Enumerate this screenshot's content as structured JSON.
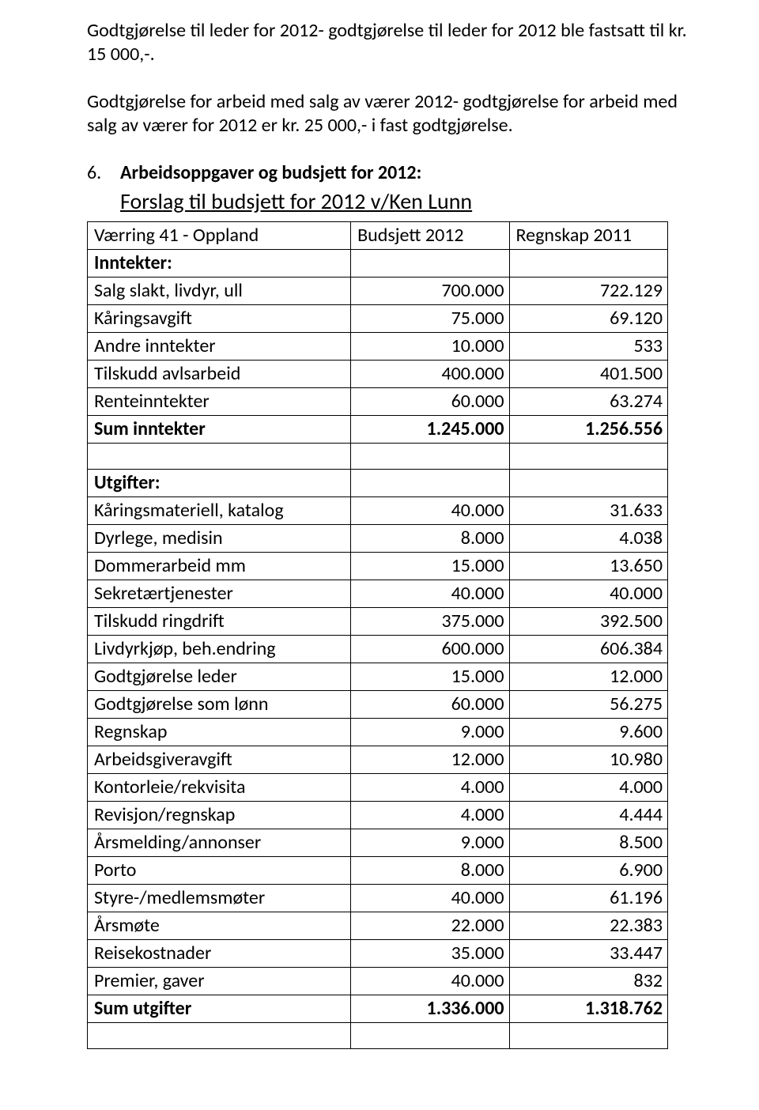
{
  "paragraphs": {
    "p1": "Godtgjørelse til leder for 2012- godtgjørelse til leder for 2012 ble fastsatt til kr. 15 000,-.",
    "p2": "Godtgjørelse for arbeid med salg av værer 2012- godtgjørelse for arbeid med salg av værer for 2012 er kr. 25 000,- i fast godtgjørelse."
  },
  "section": {
    "marker": "6.",
    "title": "Arbeidsoppgaver og budsjett for 2012:",
    "subtitle": "Forslag til budsjett for 2012 v/Ken Lunn"
  },
  "table": {
    "header": {
      "c1": "Værring 41 - Oppland",
      "c2": "Budsjett 2012",
      "c3": "Regnskap 2011"
    },
    "rows": [
      {
        "c1": "Inntekter:",
        "c2": "",
        "c3": "",
        "bold": true,
        "leftOnly": true
      },
      {
        "c1": "Salg slakt, livdyr, ull",
        "c2": "700.000",
        "c3": "722.129"
      },
      {
        "c1": "Kåringsavgift",
        "c2": "75.000",
        "c3": "69.120"
      },
      {
        "c1": "Andre inntekter",
        "c2": "10.000",
        "c3": "533"
      },
      {
        "c1": "Tilskudd avlsarbeid",
        "c2": "400.000",
        "c3": "401.500"
      },
      {
        "c1": "Renteinntekter",
        "c2": "60.000",
        "c3": "63.274"
      },
      {
        "c1": "Sum inntekter",
        "c2": "1.245.000",
        "c3": "1.256.556",
        "bold": true
      },
      {
        "spacer": true
      },
      {
        "c1": "Utgifter:",
        "c2": "",
        "c3": "",
        "bold": true,
        "leftOnly": true
      },
      {
        "c1": "Kåringsmateriell, katalog",
        "c2": "40.000",
        "c3": "31.633"
      },
      {
        "c1": "Dyrlege, medisin",
        "c2": "8.000",
        "c3": "4.038"
      },
      {
        "c1": "Dommerarbeid mm",
        "c2": "15.000",
        "c3": "13.650"
      },
      {
        "c1": "Sekretærtjenester",
        "c2": "40.000",
        "c3": "40.000"
      },
      {
        "c1": "Tilskudd ringdrift",
        "c2": "375.000",
        "c3": "392.500"
      },
      {
        "c1": "Livdyrkjøp, beh.endring",
        "c2": "600.000",
        "c3": "606.384"
      },
      {
        "c1": "Godtgjørelse leder",
        "c2": "15.000",
        "c3": "12.000"
      },
      {
        "c1": "Godtgjørelse som lønn",
        "c2": "60.000",
        "c3": "56.275"
      },
      {
        "c1": "Regnskap",
        "c2": "9.000",
        "c3": "9.600"
      },
      {
        "c1": "Arbeidsgiveravgift",
        "c2": "12.000",
        "c3": "10.980"
      },
      {
        "c1": "Kontorleie/rekvisita",
        "c2": "4.000",
        "c3": "4.000"
      },
      {
        "c1": "Revisjon/regnskap",
        "c2": "4.000",
        "c3": "4.444"
      },
      {
        "c1": "Årsmelding/annonser",
        "c2": "9.000",
        "c3": "8.500"
      },
      {
        "c1": "Porto",
        "c2": "8.000",
        "c3": "6.900"
      },
      {
        "c1": "Styre-/medlemsmøter",
        "c2": "40.000",
        "c3": "61.196"
      },
      {
        "c1": "Årsmøte",
        "c2": "22.000",
        "c3": "22.383"
      },
      {
        "c1": "Reisekostnader",
        "c2": "35.000",
        "c3": "33.447"
      },
      {
        "c1": "Premier, gaver",
        "c2": "40.000",
        "c3": "832"
      },
      {
        "c1": "Sum utgifter",
        "c2": "1.336.000",
        "c3": "1.318.762",
        "bold": true
      },
      {
        "spacer": true
      }
    ]
  }
}
